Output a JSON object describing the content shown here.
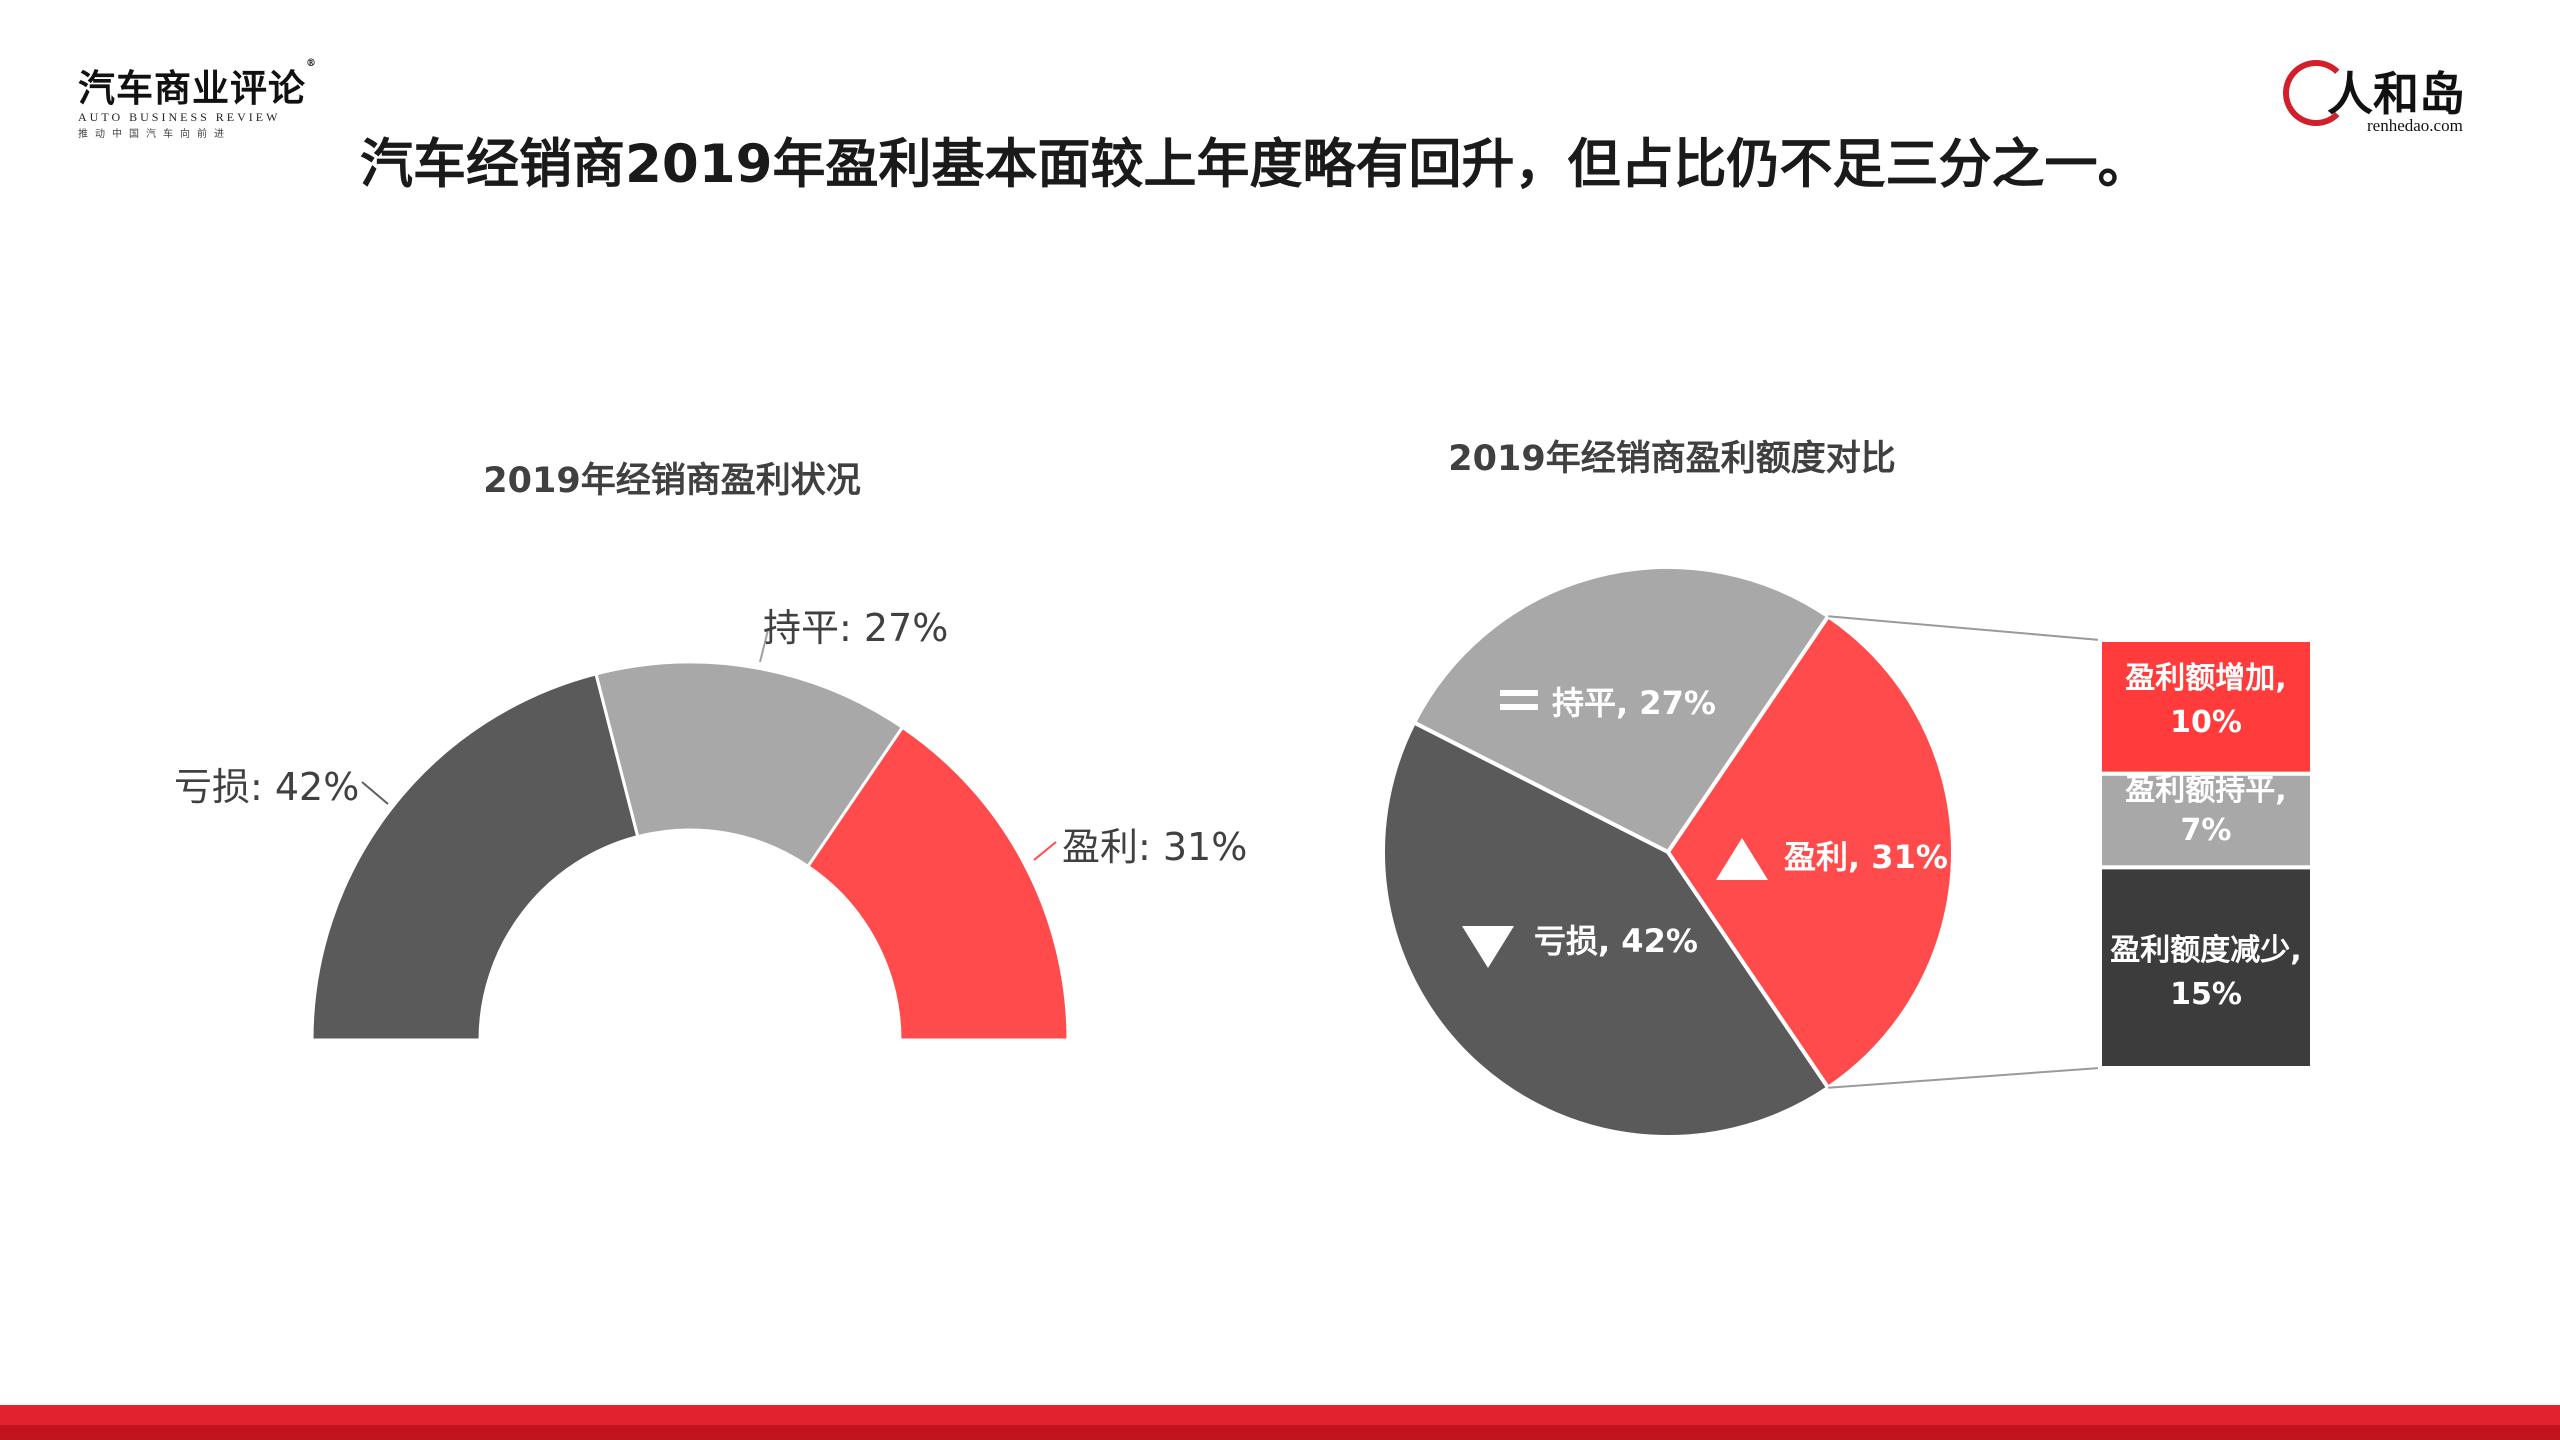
{
  "header": {
    "logo_left_cn": "汽车商业评论",
    "logo_left_en": "AUTO BUSINESS REVIEW",
    "logo_left_sub": "推动中国汽车向前进",
    "logo_right_cn": "人和岛",
    "logo_right_en": "renhedao.com",
    "headline": "汽车经销商2019年盈利基本面较上年度略有回升，但占比仍不足三分之一。"
  },
  "colors": {
    "loss": "#5a5a5a",
    "flat": "#a8a8a8",
    "profit": "#ff4b4b",
    "increase": "#ff3b3b",
    "same": "#a8a8a8",
    "decrease": "#3c3c3c",
    "footer": "#e2222e"
  },
  "chart_data": [
    {
      "type": "pie",
      "variant": "half-donut",
      "title": "2019年经销商盈利状况",
      "categories": [
        "亏损",
        "持平",
        "盈利"
      ],
      "values": [
        42,
        27,
        31
      ],
      "labels": [
        "亏损: 42%",
        "持平: 27%",
        "盈利: 31%"
      ]
    },
    {
      "type": "pie",
      "variant": "bar-of-pie",
      "title": "2019年经销商盈利额度对比",
      "categories": [
        "亏损",
        "持平",
        "盈利"
      ],
      "values": [
        42,
        27,
        31
      ],
      "labels": [
        "亏损, 42%",
        "持平, 27%",
        "盈利, 31%"
      ],
      "breakdown_of": "盈利",
      "breakdown": [
        {
          "name": "盈利额增加",
          "value": 10,
          "line1": "盈利额增加,",
          "line2": "10%"
        },
        {
          "name": "盈利额持平",
          "value": 7,
          "line1": "盈利额持平,",
          "line2": "7%"
        },
        {
          "name": "盈利额度减少",
          "value": 15,
          "line1": "盈利额度减少,",
          "line2": "15%"
        }
      ]
    }
  ]
}
